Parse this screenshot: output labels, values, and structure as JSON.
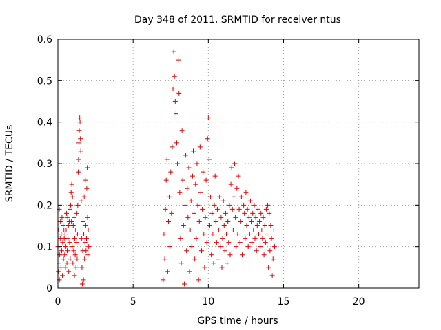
{
  "chart_data": {
    "type": "scatter",
    "title": "Day 348 of 2011, SRMTID for receiver ntus",
    "xlabel": "GPS time / hours",
    "ylabel": "SRMTID / TECUs",
    "xlim": [
      0,
      24
    ],
    "ylim": [
      0,
      0.6
    ],
    "xticks": [
      "0",
      "5",
      "10",
      "15",
      "20"
    ],
    "yticks": [
      "0",
      "0.1",
      "0.2",
      "0.3",
      "0.4",
      "0.5",
      "0.6"
    ],
    "grid": true,
    "marker": "plus",
    "color": "#e00000",
    "series": [
      {
        "name": "",
        "points": [
          [
            0.0,
            0.1
          ],
          [
            0.02,
            0.04
          ],
          [
            0.05,
            0.14
          ],
          [
            0.07,
            0.06
          ],
          [
            0.09,
            0.19
          ],
          [
            0.1,
            0.02
          ],
          [
            0.12,
            0.08
          ],
          [
            0.15,
            0.12
          ],
          [
            0.17,
            0.16
          ],
          [
            0.2,
            0.05
          ],
          [
            0.22,
            0.13
          ],
          [
            0.25,
            0.09
          ],
          [
            0.27,
            0.17
          ],
          [
            0.3,
            0.03
          ],
          [
            0.32,
            0.11
          ],
          [
            0.35,
            0.15
          ],
          [
            0.37,
            0.07
          ],
          [
            0.4,
            0.14
          ],
          [
            0.42,
            0.12
          ],
          [
            0.45,
            0.08
          ],
          [
            0.47,
            0.13
          ],
          [
            0.5,
            0.05
          ],
          [
            0.52,
            0.1
          ],
          [
            0.55,
            0.14
          ],
          [
            0.57,
            0.18
          ],
          [
            0.6,
            0.06
          ],
          [
            0.62,
            0.09
          ],
          [
            0.65,
            0.17
          ],
          [
            0.67,
            0.12
          ],
          [
            0.7,
            0.15
          ],
          [
            0.72,
            0.04
          ],
          [
            0.75,
            0.16
          ],
          [
            0.78,
            0.11
          ],
          [
            0.8,
            0.19
          ],
          [
            0.82,
            0.07
          ],
          [
            0.85,
            0.2
          ],
          [
            0.88,
            0.23
          ],
          [
            0.9,
            0.16
          ],
          [
            0.92,
            0.25
          ],
          [
            0.95,
            0.1
          ],
          [
            0.97,
            0.22
          ],
          [
            1.0,
            0.06
          ],
          [
            1.02,
            0.15
          ],
          [
            1.05,
            0.09
          ],
          [
            1.08,
            0.17
          ],
          [
            1.1,
            0.03
          ],
          [
            1.12,
            0.12
          ],
          [
            1.15,
            0.08
          ],
          [
            1.18,
            0.14
          ],
          [
            1.2,
            0.05
          ],
          [
            1.22,
            0.11
          ],
          [
            1.25,
            0.18
          ],
          [
            1.28,
            0.07
          ],
          [
            1.3,
            0.13
          ],
          [
            1.32,
            0.2
          ],
          [
            1.35,
            0.28
          ],
          [
            1.37,
            0.31
          ],
          [
            1.4,
            0.35
          ],
          [
            1.42,
            0.38
          ],
          [
            1.45,
            0.41
          ],
          [
            1.47,
            0.4
          ],
          [
            1.5,
            0.36
          ],
          [
            1.52,
            0.33
          ],
          [
            1.55,
            0.21
          ],
          [
            1.57,
            0.12
          ],
          [
            1.6,
            0.05
          ],
          [
            1.62,
            0.01
          ],
          [
            1.65,
            0.09
          ],
          [
            1.67,
            0.16
          ],
          [
            1.7,
            0.02
          ],
          [
            1.72,
            0.13
          ],
          [
            1.75,
            0.22
          ],
          [
            1.77,
            0.07
          ],
          [
            1.8,
            0.11
          ],
          [
            1.82,
            0.26
          ],
          [
            1.85,
            0.15
          ],
          [
            1.87,
            0.09
          ],
          [
            1.9,
            0.12
          ],
          [
            1.92,
            0.24
          ],
          [
            1.95,
            0.29
          ],
          [
            1.97,
            0.17
          ],
          [
            2.0,
            0.08
          ],
          [
            2.02,
            0.14
          ],
          [
            2.05,
            0.1
          ],
          [
            7.0,
            0.02
          ],
          [
            7.05,
            0.13
          ],
          [
            7.1,
            0.07
          ],
          [
            7.15,
            0.19
          ],
          [
            7.2,
            0.26
          ],
          [
            7.25,
            0.31
          ],
          [
            7.3,
            0.04
          ],
          [
            7.35,
            0.16
          ],
          [
            7.4,
            0.22
          ],
          [
            7.45,
            0.1
          ],
          [
            7.5,
            0.28
          ],
          [
            7.55,
            0.18
          ],
          [
            7.6,
            0.34
          ],
          [
            7.65,
            0.48
          ],
          [
            7.7,
            0.57
          ],
          [
            7.75,
            0.51
          ],
          [
            7.8,
            0.45
          ],
          [
            7.85,
            0.42
          ],
          [
            7.9,
            0.35
          ],
          [
            7.95,
            0.3
          ],
          [
            8.0,
            0.55
          ],
          [
            8.05,
            0.47
          ],
          [
            8.1,
            0.23
          ],
          [
            8.15,
            0.12
          ],
          [
            8.2,
            0.06
          ],
          [
            8.25,
            0.38
          ],
          [
            8.3,
            0.26
          ],
          [
            8.35,
            0.15
          ],
          [
            8.4,
            0.01
          ],
          [
            8.45,
            0.2
          ],
          [
            8.5,
            0.32
          ],
          [
            8.55,
            0.09
          ],
          [
            8.6,
            0.24
          ],
          [
            8.65,
            0.17
          ],
          [
            8.7,
            0.29
          ],
          [
            8.75,
            0.04
          ],
          [
            8.8,
            0.14
          ],
          [
            8.85,
            0.21
          ],
          [
            8.9,
            0.1
          ],
          [
            8.95,
            0.27
          ],
          [
            9.0,
            0.33
          ],
          [
            9.05,
            0.18
          ],
          [
            9.1,
            0.07
          ],
          [
            9.15,
            0.25
          ],
          [
            9.2,
            0.12
          ],
          [
            9.25,
            0.3
          ],
          [
            9.3,
            0.2
          ],
          [
            9.35,
            0.02
          ],
          [
            9.4,
            0.16
          ],
          [
            9.45,
            0.34
          ],
          [
            9.5,
            0.23
          ],
          [
            9.55,
            0.09
          ],
          [
            9.6,
            0.19
          ],
          [
            9.65,
            0.28
          ],
          [
            9.7,
            0.13
          ],
          [
            9.75,
            0.05
          ],
          [
            9.8,
            0.17
          ],
          [
            9.85,
            0.26
          ],
          [
            9.9,
            0.11
          ],
          [
            9.95,
            0.36
          ],
          [
            10.0,
            0.41
          ],
          [
            10.05,
            0.31
          ],
          [
            10.1,
            0.15
          ],
          [
            10.15,
            0.22
          ],
          [
            10.2,
            0.08
          ],
          [
            10.25,
            0.18
          ],
          [
            10.3,
            0.13
          ],
          [
            10.35,
            0.06
          ],
          [
            10.4,
            0.2
          ],
          [
            10.45,
            0.27
          ],
          [
            10.5,
            0.16
          ],
          [
            10.55,
            0.11
          ],
          [
            10.6,
            0.19
          ],
          [
            10.65,
            0.07
          ],
          [
            10.7,
            0.14
          ],
          [
            10.75,
            0.22
          ],
          [
            10.8,
            0.1
          ],
          [
            10.85,
            0.17
          ],
          [
            10.9,
            0.05
          ],
          [
            10.95,
            0.12
          ],
          [
            11.0,
            0.21
          ],
          [
            11.05,
            0.15
          ],
          [
            11.1,
            0.09
          ],
          [
            11.15,
            0.18
          ],
          [
            11.2,
            0.13
          ],
          [
            11.25,
            0.06
          ],
          [
            11.3,
            0.16
          ],
          [
            11.35,
            0.11
          ],
          [
            11.4,
            0.2
          ],
          [
            11.45,
            0.08
          ],
          [
            11.5,
            0.25
          ],
          [
            11.55,
            0.29
          ],
          [
            11.6,
            0.19
          ],
          [
            11.65,
            0.14
          ],
          [
            11.7,
            0.22
          ],
          [
            11.75,
            0.3
          ],
          [
            11.8,
            0.17
          ],
          [
            11.85,
            0.1
          ],
          [
            11.9,
            0.24
          ],
          [
            11.95,
            0.13
          ],
          [
            12.0,
            0.27
          ],
          [
            12.05,
            0.19
          ],
          [
            12.1,
            0.11
          ],
          [
            12.15,
            0.16
          ],
          [
            12.2,
            0.22
          ],
          [
            12.25,
            0.08
          ],
          [
            12.3,
            0.14
          ],
          [
            12.35,
            0.2
          ],
          [
            12.4,
            0.18
          ],
          [
            12.45,
            0.12
          ],
          [
            12.5,
            0.23
          ],
          [
            12.55,
            0.15
          ],
          [
            12.6,
            0.19
          ],
          [
            12.65,
            0.1
          ],
          [
            12.7,
            0.17
          ],
          [
            12.75,
            0.13
          ],
          [
            12.8,
            0.21
          ],
          [
            12.85,
            0.16
          ],
          [
            12.9,
            0.11
          ],
          [
            12.95,
            0.18
          ],
          [
            13.0,
            0.14
          ],
          [
            13.05,
            0.2
          ],
          [
            13.1,
            0.12
          ],
          [
            13.15,
            0.17
          ],
          [
            13.2,
            0.09
          ],
          [
            13.25,
            0.15
          ],
          [
            13.3,
            0.19
          ],
          [
            13.35,
            0.13
          ],
          [
            13.4,
            0.16
          ],
          [
            13.45,
            0.1
          ],
          [
            13.5,
            0.18
          ],
          [
            13.55,
            0.14
          ],
          [
            13.6,
            0.12
          ],
          [
            13.65,
            0.17
          ],
          [
            13.7,
            0.08
          ],
          [
            13.75,
            0.15
          ],
          [
            13.8,
            0.11
          ],
          [
            13.85,
            0.19
          ],
          [
            13.9,
            0.13
          ],
          [
            13.95,
            0.2
          ],
          [
            14.0,
            0.05
          ],
          [
            14.05,
            0.18
          ],
          [
            14.1,
            0.09
          ],
          [
            14.15,
            0.15
          ],
          [
            14.2,
            0.12
          ],
          [
            14.25,
            0.03
          ],
          [
            14.3,
            0.07
          ],
          [
            14.35,
            0.14
          ],
          [
            14.4,
            0.1
          ]
        ]
      }
    ]
  }
}
